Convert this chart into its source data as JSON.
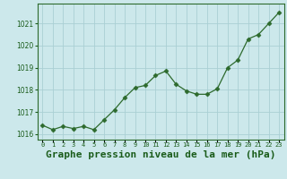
{
  "x": [
    0,
    1,
    2,
    3,
    4,
    5,
    6,
    7,
    8,
    9,
    10,
    11,
    12,
    13,
    14,
    15,
    16,
    17,
    18,
    19,
    20,
    21,
    22,
    23
  ],
  "y": [
    1016.4,
    1016.2,
    1016.35,
    1016.25,
    1016.35,
    1016.2,
    1016.65,
    1017.1,
    1017.65,
    1018.1,
    1018.2,
    1018.65,
    1018.85,
    1018.25,
    1017.95,
    1017.8,
    1017.8,
    1018.05,
    1019.0,
    1019.35,
    1020.3,
    1020.5,
    1021.0,
    1021.5
  ],
  "line_color": "#2d6a2d",
  "marker": "D",
  "marker_size": 2.5,
  "bg_color": "#cce8eb",
  "grid_color": "#aacfd4",
  "title": "Graphe pression niveau de la mer (hPa)",
  "title_fontsize": 8,
  "tick_color": "#1a5c1a",
  "ylim": [
    1015.75,
    1021.9
  ],
  "yticks": [
    1016,
    1017,
    1018,
    1019,
    1020,
    1021
  ],
  "xlim": [
    -0.5,
    23.5
  ],
  "xtick_labels": [
    "0",
    "1",
    "2",
    "3",
    "4",
    "5",
    "6",
    "7",
    "8",
    "9",
    "10",
    "11",
    "12",
    "13",
    "14",
    "15",
    "16",
    "17",
    "18",
    "19",
    "20",
    "21",
    "22",
    "23"
  ]
}
